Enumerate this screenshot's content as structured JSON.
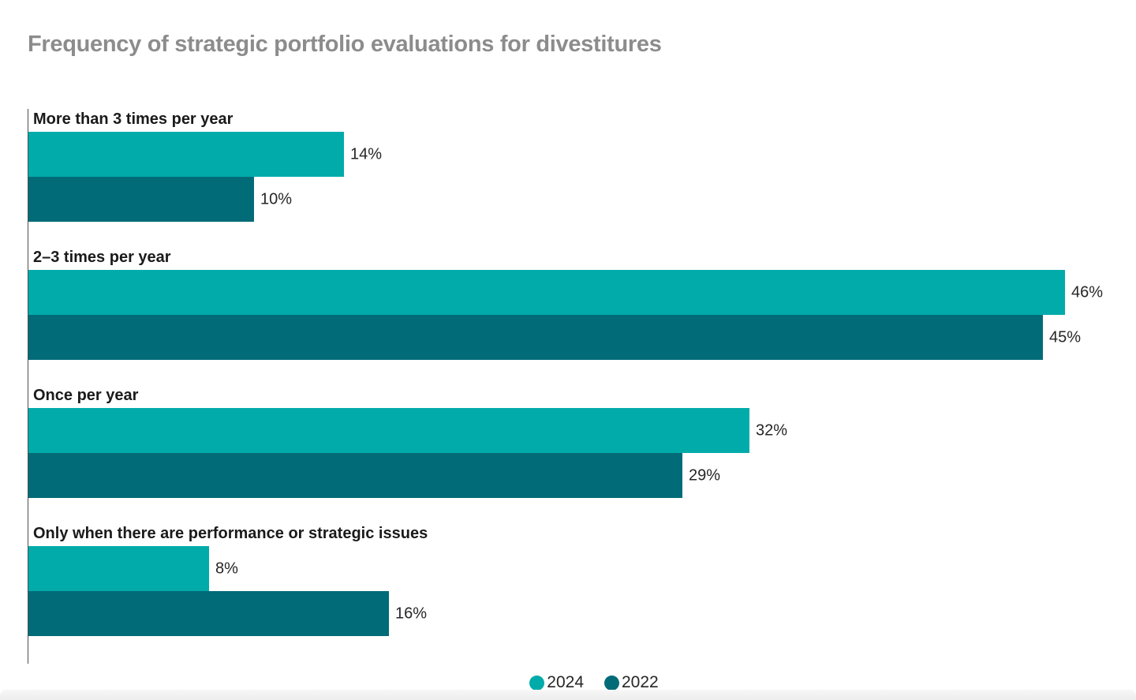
{
  "chart_data": {
    "type": "bar",
    "orientation": "horizontal",
    "title": "Frequency of strategic portfolio evaluations for divestitures",
    "categories": [
      "More than 3 times per year",
      "2–3 times per year",
      "Once per year",
      "Only when there are performance or strategic issues"
    ],
    "series": [
      {
        "name": "2024",
        "color": "#00ABAA",
        "values": [
          14,
          46,
          32,
          8
        ],
        "labels": [
          "14%",
          "46%",
          "32%",
          "8%"
        ]
      },
      {
        "name": "2022",
        "color": "#026B78",
        "values": [
          10,
          45,
          29,
          16
        ],
        "labels": [
          "10%",
          "45%",
          "29%",
          "16%"
        ]
      }
    ],
    "xlim": [
      0,
      48
    ],
    "value_suffix": "%",
    "grid": false,
    "legend_position": "bottom-center"
  },
  "colors": {
    "title": "#8C8C8C",
    "category_label": "#1A1A1A",
    "value_label": "#262626",
    "axis_line": "#4D4D4D",
    "bottom_strip": "#F2F2F2"
  }
}
